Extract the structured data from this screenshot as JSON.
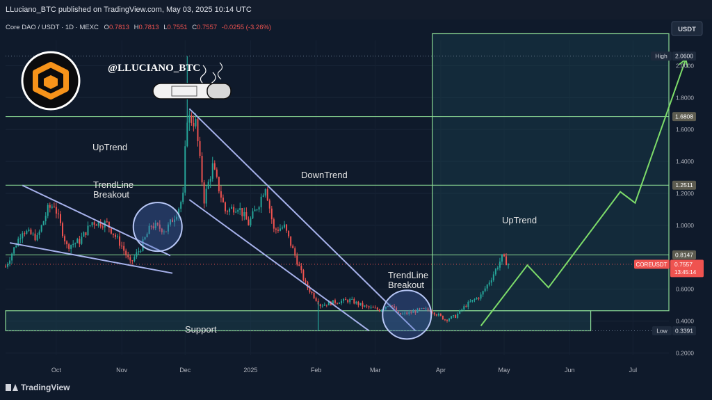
{
  "header": {
    "published": "LLuciano_BTC published on TradingView.com, May 03, 2025 10:14 UTC"
  },
  "ohlc": {
    "symbol": "Core DAO / USDT · 1D · MEXC",
    "o_label": "O",
    "o": "0.7813",
    "h_label": "H",
    "h": "0.7813",
    "l_label": "L",
    "l": "0.7551",
    "c_label": "C",
    "c": "0.7557",
    "change": "-0.0255 (-3.26%)"
  },
  "quote_currency": "USDT",
  "author_handle": "@LLUCIANO_BTC",
  "annotations": {
    "uptrend_left": "UpTrend",
    "breakout_left_1": "TrendLine",
    "breakout_left_2": "Breakout",
    "downtrend": "DownTrend",
    "breakout_right_1": "TrendLine",
    "breakout_right_2": "Breakout",
    "uptrend_right": "UpTrend",
    "support": "Support"
  },
  "price_labels": {
    "high_tag": "High",
    "high": "2.0600",
    "r1": "1.6808",
    "r2": "1.2511",
    "r3": "0.8147",
    "current_symbol": "COREUSDT",
    "current": "0.7557",
    "countdown": "13:45:14",
    "low_tag": "Low",
    "low": "0.3391"
  },
  "colors": {
    "background": "#0f1a2b",
    "bull": "#26a69a",
    "bear": "#ef5350",
    "line": "#8cdb95",
    "trendline": "#a7b2ec",
    "forecast_arrow": "#7ddc6a",
    "logo_orange": "#f7931a"
  },
  "icons": {
    "logo": "hexagon-cube-logo-icon",
    "cigar": "cigar-icon",
    "brand": "tradingview-logo-icon"
  },
  "brand": "TradingView",
  "chart_data": {
    "type": "candlestick",
    "title": "Core DAO / USDT · 1D · MEXC",
    "xlabel": "",
    "ylabel": "",
    "x_ticks": [
      "Oct",
      "Nov",
      "Dec",
      "2025",
      "Feb",
      "Mar",
      "Apr",
      "May",
      "Jun",
      "Jul"
    ],
    "y_ticks": [
      "0.2000",
      "0.4000",
      "0.6000",
      "0.8000",
      "1.0000",
      "1.2000",
      "1.4000",
      "1.6000",
      "1.8000",
      "2.0000"
    ],
    "ylim": [
      0.18,
      2.25
    ],
    "xlim": [
      "2024-09-07",
      "2025-07-18"
    ],
    "horizontal_levels": [
      2.06,
      1.6808,
      1.2511,
      0.8147,
      0.3391
    ],
    "support_zone": [
      0.3391,
      0.4645
    ],
    "current_price": 0.7557,
    "anchors": [
      [
        "2024-09-07",
        0.74
      ],
      [
        "2024-09-15",
        0.97
      ],
      [
        "2024-09-22",
        0.92
      ],
      [
        "2024-09-27",
        1.1
      ],
      [
        "2024-09-30",
        1.13
      ],
      [
        "2024-10-06",
        0.87
      ],
      [
        "2024-10-12",
        0.9
      ],
      [
        "2024-10-18",
        1.02
      ],
      [
        "2024-10-25",
        1.01
      ],
      [
        "2024-11-01",
        0.87
      ],
      [
        "2024-11-05",
        0.76
      ],
      [
        "2024-11-10",
        0.86
      ],
      [
        "2024-11-15",
        1.0
      ],
      [
        "2024-11-22",
        0.97
      ],
      [
        "2024-11-27",
        1.08
      ],
      [
        "2024-11-30",
        1.18
      ],
      [
        "2024-12-01",
        1.46
      ],
      [
        "2024-12-02",
        1.68
      ],
      [
        "2024-12-06",
        1.64
      ],
      [
        "2024-12-10",
        1.16
      ],
      [
        "2024-12-14",
        1.37
      ],
      [
        "2024-12-20",
        1.09
      ],
      [
        "2024-12-26",
        1.12
      ],
      [
        "2024-12-31",
        1.01
      ],
      [
        "2025-01-05",
        1.14
      ],
      [
        "2025-01-08",
        1.25
      ],
      [
        "2025-01-12",
        0.97
      ],
      [
        "2025-01-17",
        0.99
      ],
      [
        "2025-01-22",
        0.81
      ],
      [
        "2025-01-27",
        0.63
      ],
      [
        "2025-02-03",
        0.5
      ],
      [
        "2025-02-10",
        0.52
      ],
      [
        "2025-02-17",
        0.53
      ],
      [
        "2025-02-24",
        0.49
      ],
      [
        "2025-03-03",
        0.47
      ],
      [
        "2025-03-08",
        0.51
      ],
      [
        "2025-03-12",
        0.44
      ],
      [
        "2025-03-17",
        0.45
      ],
      [
        "2025-03-22",
        0.47
      ],
      [
        "2025-03-27",
        0.47
      ],
      [
        "2025-04-03",
        0.41
      ],
      [
        "2025-04-08",
        0.43
      ],
      [
        "2025-04-13",
        0.5
      ],
      [
        "2025-04-20",
        0.56
      ],
      [
        "2025-04-25",
        0.67
      ],
      [
        "2025-04-30",
        0.8
      ],
      [
        "2025-05-03",
        0.7557
      ]
    ],
    "forecast_path": [
      [
        "2025-04-20",
        0.37
      ],
      [
        "2025-05-12",
        0.75
      ],
      [
        "2025-05-22",
        0.61
      ],
      [
        "2025-06-25",
        1.21
      ],
      [
        "2025-07-02",
        1.14
      ],
      [
        "2025-07-26",
        2.04
      ]
    ],
    "trendlines": [
      [
        [
          "2024-09-15",
          1.25
        ],
        [
          "2024-11-24",
          0.81
        ]
      ],
      [
        [
          "2024-09-09",
          0.89
        ],
        [
          "2024-11-25",
          0.7
        ]
      ],
      [
        [
          "2024-12-03",
          1.73
        ],
        [
          "2025-03-20",
          0.34
        ]
      ],
      [
        [
          "2024-12-03",
          1.16
        ],
        [
          "2025-02-26",
          0.34
        ]
      ]
    ],
    "circles": [
      [
        "2024-11-18",
        0.99
      ],
      [
        "2025-03-16",
        0.44
      ]
    ],
    "forecast_zone": {
      "from": "2025-03-28",
      "top": 2.2,
      "bottom": 0.4645
    }
  }
}
